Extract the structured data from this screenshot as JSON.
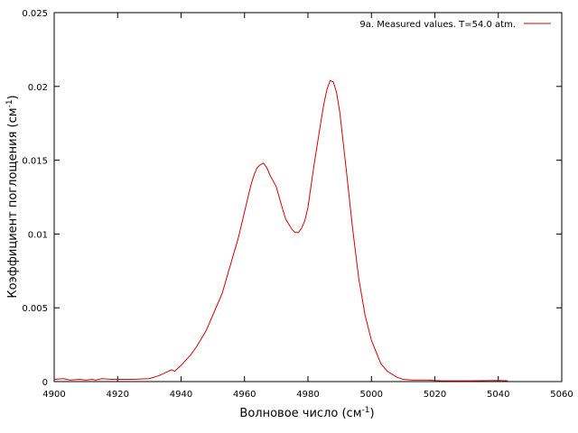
{
  "chart_data": {
    "type": "line",
    "xlabel_main": "Волновое число (см",
    "xlabel_sup": "-1",
    "xlabel_end": ")",
    "ylabel_main": "Коэффициент поглощения (см",
    "ylabel_sup": "-1",
    "ylabel_end": ")",
    "xlim": [
      4900,
      5060
    ],
    "ylim": [
      0,
      0.025
    ],
    "xticks": [
      "4900",
      "4920",
      "4940",
      "4960",
      "4980",
      "5000",
      "5020",
      "5040",
      "5060"
    ],
    "yticks": [
      "0",
      "0.005",
      "0.01",
      "0.015",
      "0.02",
      "0.025"
    ],
    "legend_position": "top-right",
    "series": [
      {
        "name": "9a. Measured values. T=54.0 atm.",
        "color": "#e00000",
        "x": [
          4900,
          4903,
          4905,
          4908,
          4910,
          4912,
          4913,
          4915,
          4918,
          4920,
          4925,
          4930,
          4933,
          4935,
          4937,
          4938,
          4940,
          4943,
          4945,
          4948,
          4950,
          4953,
          4955,
          4958,
          4960,
          4962,
          4963,
          4964,
          4965,
          4966,
          4967,
          4968,
          4970,
          4972,
          4973,
          4975,
          4976,
          4977,
          4978,
          4979,
          4980,
          4982,
          4984,
          4985,
          4986,
          4987,
          4988,
          4989,
          4990,
          4992,
          4994,
          4996,
          4998,
          5000,
          5003,
          5005,
          5008,
          5010,
          5013,
          5015,
          5018,
          5020,
          5022,
          5025,
          5030,
          5035,
          5040,
          5043
        ],
        "y": [
          0.00015,
          0.0002,
          0.0001,
          0.00015,
          0.0001,
          0.00015,
          0.0001,
          0.0002,
          0.00015,
          0.00015,
          0.00015,
          0.0002,
          0.0004,
          0.0006,
          0.0008,
          0.0007,
          0.0011,
          0.0018,
          0.0024,
          0.0035,
          0.0045,
          0.006,
          0.0075,
          0.0097,
          0.0115,
          0.0133,
          0.014,
          0.0145,
          0.0147,
          0.0148,
          0.0145,
          0.014,
          0.0132,
          0.0117,
          0.011,
          0.0103,
          0.0101,
          0.0101,
          0.0104,
          0.0109,
          0.0118,
          0.0148,
          0.0175,
          0.0188,
          0.0198,
          0.0204,
          0.0203,
          0.0196,
          0.0183,
          0.0145,
          0.0105,
          0.007,
          0.0045,
          0.0028,
          0.0012,
          0.0007,
          0.0003,
          0.00015,
          0.0001,
          0.0001,
          0.0001,
          8e-05,
          5e-05,
          5e-05,
          5e-05,
          6e-05,
          8e-05,
          5e-05
        ]
      }
    ]
  }
}
